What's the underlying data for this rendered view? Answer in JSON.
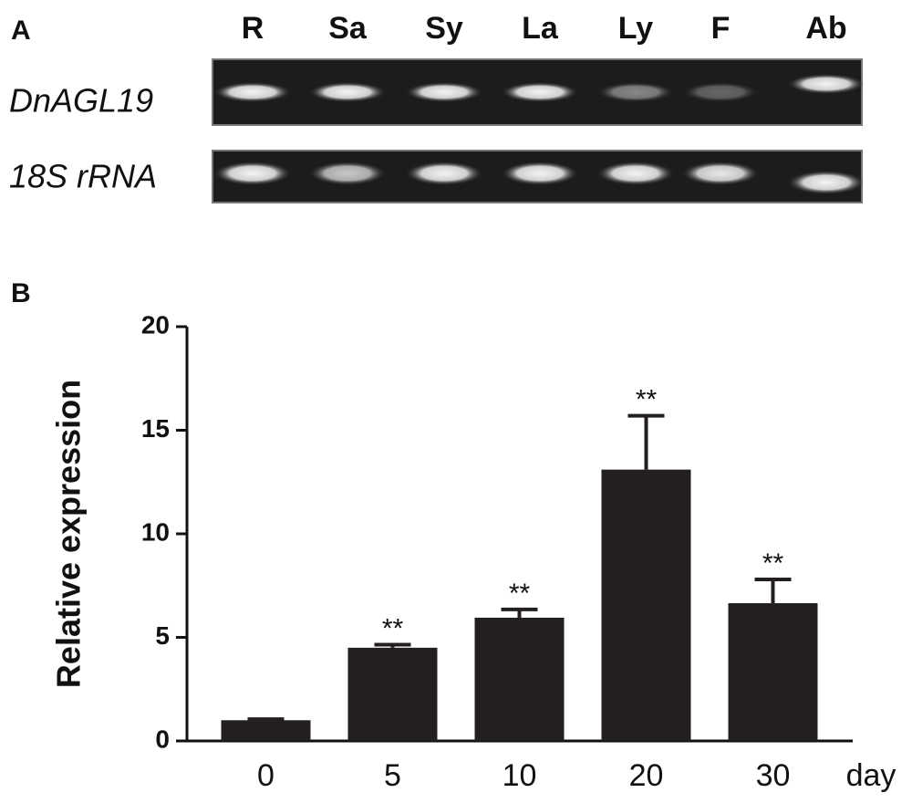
{
  "panels": {
    "a": "A",
    "b": "B"
  },
  "gel": {
    "lanes": [
      "R",
      "Sa",
      "Sy",
      "La",
      "Ly",
      "F",
      "Ab"
    ],
    "rows": [
      "DnAGL19",
      "18S rRNA"
    ]
  },
  "chart_data": {
    "type": "bar",
    "y_label": "Relative expression",
    "x_label": "day",
    "categories": [
      "0",
      "5",
      "10",
      "20",
      "30"
    ],
    "values": [
      1.0,
      4.5,
      5.95,
      13.1,
      6.65
    ],
    "errors": [
      0.05,
      0.15,
      0.4,
      2.6,
      1.15
    ],
    "significance": [
      null,
      "**",
      "**",
      "**",
      "**"
    ],
    "color": "#231f20",
    "ylim": [
      0,
      20
    ],
    "yticks": [
      0,
      5,
      10,
      15,
      20
    ]
  }
}
